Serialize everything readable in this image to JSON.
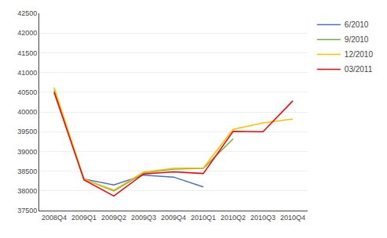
{
  "chart_data": {
    "type": "line",
    "categories": [
      "2008Q4",
      "2009Q1",
      "2009Q2",
      "2009Q3",
      "2009Q4",
      "2010Q1",
      "2010Q2",
      "2010Q3",
      "2010Q4"
    ],
    "series": [
      {
        "name": "6/2010",
        "color": "#4472C4",
        "values": [
          40500,
          38300,
          38150,
          38400,
          38350,
          38100,
          null,
          null,
          null
        ]
      },
      {
        "name": "9/2010",
        "color": "#70AD47",
        "values": [
          40550,
          38300,
          38000,
          38450,
          38550,
          38570,
          39320,
          null,
          null
        ]
      },
      {
        "name": "12/2010",
        "color": "#FFC000",
        "values": [
          40620,
          38300,
          38020,
          38480,
          38570,
          38580,
          39560,
          39720,
          39820
        ]
      },
      {
        "name": "03/2011",
        "color": "#FF0000",
        "values": [
          40500,
          38280,
          37870,
          38430,
          38480,
          38440,
          39510,
          39500,
          40280
        ]
      }
    ],
    "ylim": [
      37500,
      42500
    ],
    "yticks": [
      37500,
      38000,
      38500,
      39000,
      39500,
      40000,
      40500,
      41000,
      41500,
      42000,
      42500
    ],
    "grid": true,
    "legend": "upper right"
  }
}
